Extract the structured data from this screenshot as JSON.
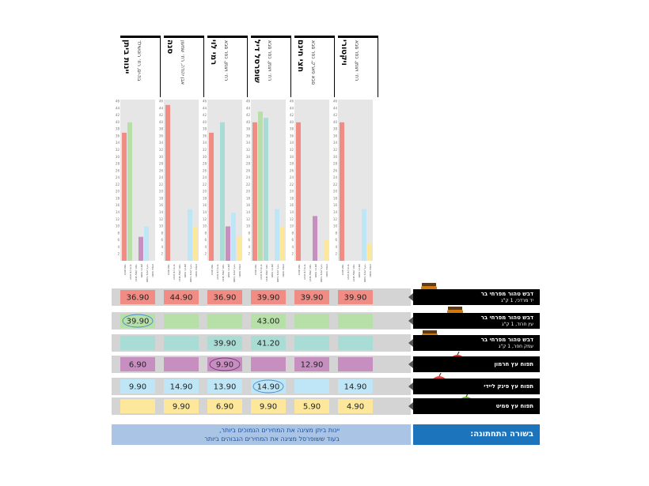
{
  "chart_data": {
    "type": "bar",
    "ylim": [
      0,
      46
    ],
    "yticks": [
      2,
      4,
      6,
      8,
      10,
      12,
      14,
      16,
      18,
      20,
      22,
      24,
      26,
      28,
      30,
      32,
      34,
      36,
      38,
      40,
      42,
      44,
      46
    ],
    "stores": [
      {
        "name": "יינות ביתן",
        "sub": "בת-ים, רח׳ רוטשילד"
      },
      {
        "name": "סנה",
        "sub": "אבן יהודה, רח׳ שמעון"
      },
      {
        "name": "רמי לוי",
        "sub": "רח׳ ויצמן, כפר סבא"
      },
      {
        "name": "שופרסל דיל",
        "sub": "רח׳ ויצמן, כפר סבא"
      },
      {
        "name": "חצי חינם",
        "sub": "סבא פארק, כפר סבא"
      },
      {
        "name": "ויקטורי",
        "sub": "רח׳ ויצמן, כפר סבא"
      }
    ],
    "bar_labels": [
      "דבש תמר",
      "דבש עין חרוד",
      "דבש עמק חפר",
      "תפוח חרמון",
      "תפוח פינק ליידי",
      "תפוח סמיט"
    ],
    "series": [
      {
        "name": "דבש טהור מפרחי בר יד מרדכי, 1 ק\"ג",
        "color": "#f08c84",
        "values": [
          36.9,
          44.9,
          36.9,
          39.9,
          39.9,
          39.9
        ],
        "labels": [
          "36.90",
          "44.90",
          "36.90",
          "39.90",
          "39.90",
          "39.90"
        ]
      },
      {
        "name": "דבש טהור מפרחי בר עין חרוד, 1 ק\"ג",
        "color": "#b7e0a9",
        "values": [
          39.9,
          null,
          null,
          43.0,
          null,
          null
        ],
        "labels": [
          "39.90",
          "",
          "",
          "43.00",
          "",
          ""
        ]
      },
      {
        "name": "דבש טהור מפרחי בר עמק חפר, 1 ק\"ג",
        "color": "#a8dcd4",
        "values": [
          null,
          null,
          39.9,
          41.2,
          null,
          null
        ],
        "labels": [
          "",
          "",
          "39.90",
          "41.20",
          "",
          ""
        ]
      },
      {
        "name": "תפוח עץ חרמון",
        "color": "#c78fc0",
        "values": [
          6.9,
          null,
          9.9,
          null,
          12.9,
          null
        ],
        "labels": [
          "6.90",
          "",
          "9.90",
          "",
          "12.90",
          ""
        ]
      },
      {
        "name": "תפוח עץ פינק ליידי",
        "color": "#bfe6f6",
        "values": [
          9.9,
          14.9,
          13.9,
          14.9,
          null,
          14.9
        ],
        "labels": [
          "9.90",
          "14.90",
          "13.90",
          "14.90",
          "",
          "14.90"
        ]
      },
      {
        "name": "תפוח עץ סמיט",
        "color": "#fce79a",
        "values": [
          null,
          9.9,
          6.9,
          9.9,
          5.9,
          4.9
        ],
        "labels": [
          "",
          "9.90",
          "6.90",
          "9.90",
          "5.90",
          "4.90"
        ]
      }
    ],
    "circled": [
      [
        1,
        0
      ],
      [
        3,
        1
      ],
      [
        3,
        2
      ],
      [
        4,
        3
      ],
      [
        2,
        4
      ],
      [
        1,
        5
      ],
      [
        3,
        5
      ]
    ]
  },
  "rows": [
    {
      "name": "דבש טהור מפרחי בר",
      "desc": "יד מרדכי, 1 ק\"ג",
      "image": "honey-jar-icon"
    },
    {
      "name": "דבש טהור מפרחי בר",
      "desc": "עין חרוד, 1 ק\"ג",
      "image": "honey-jar-icon"
    },
    {
      "name": "דבש טהור מפרחי בר",
      "desc": "עמק חפר, 1 ק\"ג",
      "image": "honey-jar-icon"
    },
    {
      "name": "תפוח עץ חרמון",
      "desc": "",
      "image": "red-apple-icon"
    },
    {
      "name": "תפוח עץ פינק ליידי",
      "desc": "",
      "image": "red-apple-icon"
    },
    {
      "name": "תפוח עץ סמיט",
      "desc": "",
      "image": "green-apple-icon"
    }
  ],
  "bottom": {
    "title": "בשורה התחתונה:",
    "line1": "יינות ביתן מציגה את המחירים הנמוכים ביותר,",
    "line2": "בעוד ששופרסל מציגה את המחירים הגבוהים ביותר"
  },
  "colors": {
    "row_bg": "#d4d4d4",
    "panel_bg": "#e6e6e6",
    "label_bg": "#000000",
    "bottom_box": "#a9c4e4",
    "bottom_title": "#1c74bc"
  }
}
